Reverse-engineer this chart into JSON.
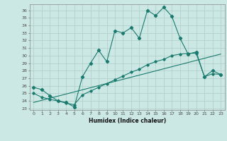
{
  "xlabel": "Humidex (Indice chaleur)",
  "background_color": "#cce8e4",
  "line_color": "#1a7a6e",
  "grid_color": "#b0ccc8",
  "xlim": [
    -0.5,
    23.5
  ],
  "ylim": [
    22.8,
    36.8
  ],
  "xticks": [
    0,
    1,
    2,
    3,
    4,
    5,
    6,
    7,
    8,
    9,
    10,
    11,
    12,
    13,
    14,
    15,
    16,
    17,
    18,
    19,
    20,
    21,
    22,
    23
  ],
  "yticks": [
    23,
    24,
    25,
    26,
    27,
    28,
    29,
    30,
    31,
    32,
    33,
    34,
    35,
    36
  ],
  "curve1_x": [
    0,
    1,
    2,
    3,
    4,
    5,
    6,
    7,
    8,
    9,
    10,
    11,
    12,
    13,
    14,
    15,
    16,
    17,
    18,
    19,
    20,
    21,
    22,
    23
  ],
  "curve1_y": [
    25.8,
    25.5,
    24.7,
    24.0,
    23.8,
    23.2,
    27.2,
    29.0,
    30.7,
    29.2,
    33.3,
    33.0,
    33.7,
    32.3,
    36.0,
    35.3,
    36.4,
    35.2,
    32.3,
    30.2,
    30.5,
    27.2,
    28.0,
    27.5
  ],
  "curve2_x": [
    0,
    1,
    2,
    3,
    4,
    5,
    6,
    7,
    8,
    9,
    10,
    11,
    12,
    13,
    14,
    15,
    16,
    17,
    18,
    19,
    20,
    21,
    22,
    23
  ],
  "curve2_y": [
    25.0,
    24.5,
    24.2,
    24.0,
    23.7,
    23.5,
    24.8,
    25.3,
    25.8,
    26.3,
    26.8,
    27.3,
    27.8,
    28.2,
    28.8,
    29.2,
    29.5,
    30.0,
    30.2,
    30.3,
    30.3,
    27.2,
    27.6,
    27.5
  ],
  "curve3_x": [
    0,
    23
  ],
  "curve3_y": [
    23.8,
    30.2
  ]
}
